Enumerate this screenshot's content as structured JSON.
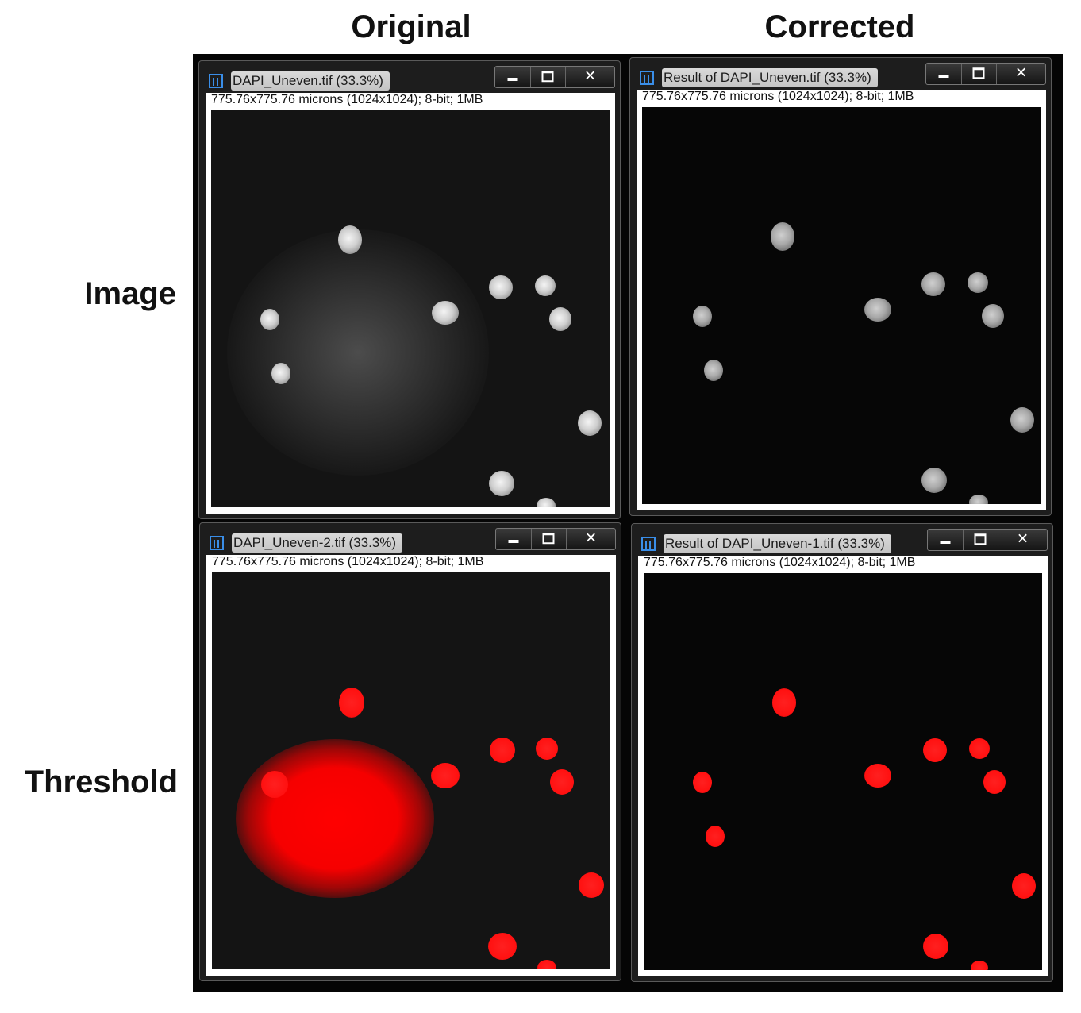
{
  "columns": {
    "original": "Original",
    "corrected": "Corrected"
  },
  "rows": {
    "image": "Image",
    "threshold": "Threshold"
  },
  "windows": [
    {
      "title": "DAPI_Uneven.tif (33.3%)",
      "info": "775.76x775.76 microns (1024x1024); 8-bit; 1MB",
      "display": "grayscale original, uneven illumination"
    },
    {
      "title": "Result of DAPI_Uneven.tif (33.3%)",
      "info": "775.76x775.76 microns (1024x1024); 8-bit; 1MB",
      "display": "grayscale corrected"
    },
    {
      "title": "DAPI_Uneven-2.tif (33.3%)",
      "info": "775.76x775.76 microns (1024x1024); 8-bit; 1MB",
      "display": "red threshold overlay on original"
    },
    {
      "title": "Result of DAPI_Uneven-1.tif (33.3%)",
      "info": "775.76x775.76 microns (1024x1024); 8-bit; 1MB",
      "display": "red threshold overlay on corrected"
    }
  ],
  "icons": {
    "app": "imagej-icon",
    "minimize": "minimize-icon",
    "maximize": "maximize-icon",
    "close": "close-icon"
  },
  "colors": {
    "threshold": "#ff0000",
    "background": "#050505",
    "titlebar_text": "#1c1c1c"
  }
}
